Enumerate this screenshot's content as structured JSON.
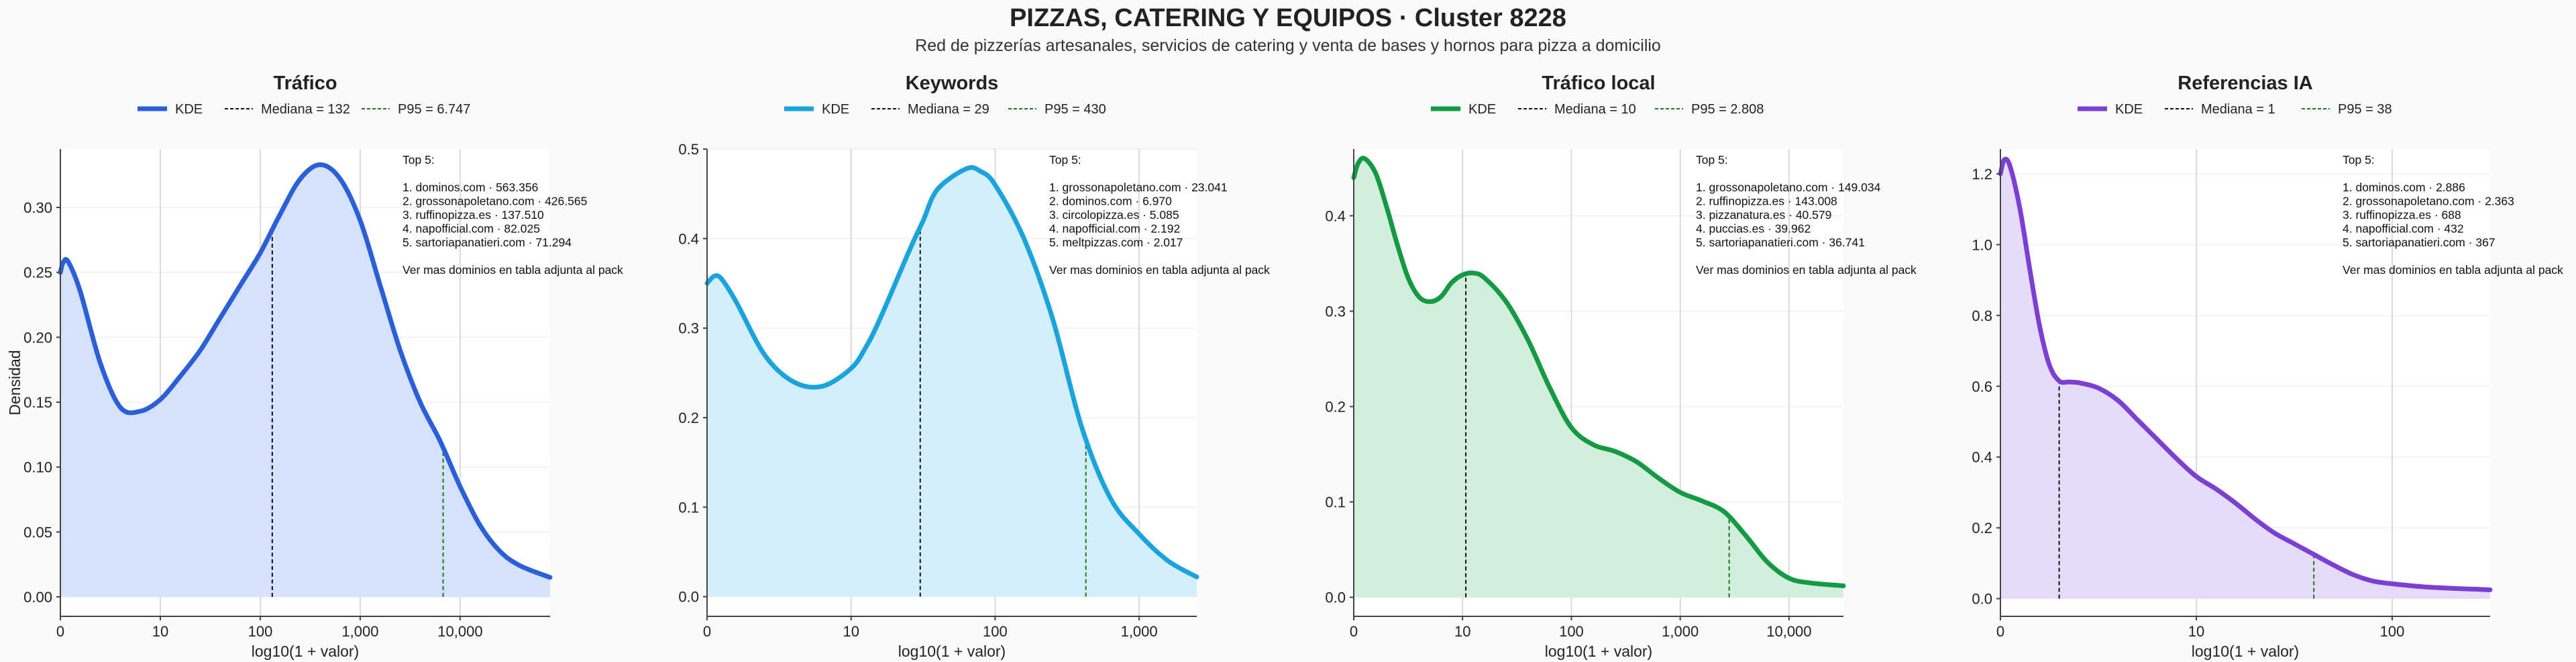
{
  "title": "PIZZAS, CATERING Y EQUIPOS · Cluster 8228",
  "subtitle": "Red de pizzerías artesanales, servicios de catering y venta de bases y hornos para pizza a domicilio",
  "chart_data": [
    {
      "type": "area",
      "title": "Tráfico",
      "xlabel": "log10(1 + valor)",
      "ylabel": "Densidad",
      "color": "#2b5fd9",
      "fill": "#d6e1fb",
      "xlim": [
        0,
        4.9
      ],
      "ylim": [
        -0.015,
        0.345
      ],
      "yticks": [
        0.0,
        0.05,
        0.1,
        0.15,
        0.2,
        0.25,
        0.3
      ],
      "ytick_labels": [
        "0.00",
        "0.05",
        "0.10",
        "0.15",
        "0.20",
        "0.25",
        "0.30"
      ],
      "xticks": [
        0,
        1,
        2,
        3,
        4
      ],
      "xtick_labels": [
        "0",
        "10",
        "100",
        "1,000",
        "10,000"
      ],
      "legend": [
        "KDE",
        "Mediana = 132",
        "P95 = 6.747"
      ],
      "median": 2.12,
      "p95": 3.83,
      "x": [
        0,
        0.03,
        0.08,
        0.2,
        0.4,
        0.6,
        0.8,
        1.0,
        1.2,
        1.4,
        1.6,
        1.8,
        2.0,
        2.2,
        2.4,
        2.6,
        2.8,
        3.0,
        3.2,
        3.4,
        3.6,
        3.8,
        4.0,
        4.2,
        4.4,
        4.6,
        4.9
      ],
      "y": [
        0.25,
        0.258,
        0.258,
        0.235,
        0.18,
        0.146,
        0.143,
        0.152,
        0.17,
        0.19,
        0.215,
        0.24,
        0.265,
        0.295,
        0.322,
        0.333,
        0.322,
        0.29,
        0.24,
        0.19,
        0.15,
        0.12,
        0.085,
        0.055,
        0.035,
        0.024,
        0.015
      ],
      "annotation": [
        "Top 5:",
        "",
        "1. dominos.com · 563.356",
        "2. grossonapoletano.com · 426.565",
        "3. ruffinopizza.es · 137.510",
        "4. napofficial.com · 82.025",
        "5. sartoriapanatieri.com · 71.294",
        "",
        "Ver mas dominios en tabla adjunta al pack"
      ]
    },
    {
      "type": "area",
      "title": "Keywords",
      "xlabel": "log10(1 + valor)",
      "ylabel": "",
      "color": "#1ba3dc",
      "fill": "#d4effb",
      "xlim": [
        0,
        3.4
      ],
      "ylim": [
        -0.022,
        0.5
      ],
      "yticks": [
        0.0,
        0.1,
        0.2,
        0.3,
        0.4,
        0.5
      ],
      "ytick_labels": [
        "0.0",
        "0.1",
        "0.2",
        "0.3",
        "0.4",
        "0.5"
      ],
      "xticks": [
        0,
        1,
        2,
        3
      ],
      "xtick_labels": [
        "0",
        "10",
        "100",
        "1,000"
      ],
      "legend": [
        "KDE",
        "Mediana = 29",
        "P95 = 430"
      ],
      "median": 1.48,
      "p95": 2.63,
      "x": [
        0,
        0.05,
        0.1,
        0.2,
        0.4,
        0.6,
        0.8,
        1.0,
        1.1,
        1.2,
        1.4,
        1.5,
        1.6,
        1.8,
        1.9,
        2.0,
        2.2,
        2.4,
        2.6,
        2.8,
        3.0,
        3.2,
        3.4
      ],
      "y": [
        0.35,
        0.358,
        0.355,
        0.33,
        0.27,
        0.24,
        0.235,
        0.255,
        0.278,
        0.31,
        0.385,
        0.42,
        0.455,
        0.478,
        0.475,
        0.46,
        0.4,
        0.31,
        0.19,
        0.11,
        0.07,
        0.04,
        0.022
      ],
      "annotation": [
        "Top 5:",
        "",
        "1. grossonapoletano.com · 23.041",
        "2. dominos.com · 6.970",
        "3. circolopizza.es · 5.085",
        "4. napofficial.com · 2.192",
        "5. meltpizzas.com · 2.017",
        "",
        "Ver mas dominios en tabla adjunta al pack"
      ]
    },
    {
      "type": "area",
      "title": "Tráfico local",
      "xlabel": "log10(1 + valor)",
      "ylabel": "",
      "color": "#149a43",
      "fill": "#d4eedd",
      "xlim": [
        0,
        4.5
      ],
      "ylim": [
        -0.02,
        0.47
      ],
      "yticks": [
        0.0,
        0.1,
        0.2,
        0.3,
        0.4
      ],
      "ytick_labels": [
        "0.0",
        "0.1",
        "0.2",
        "0.3",
        "0.4"
      ],
      "xticks": [
        0,
        1,
        2,
        3,
        4
      ],
      "xtick_labels": [
        "0",
        "10",
        "100",
        "1,000",
        "10,000"
      ],
      "legend": [
        "KDE",
        "Mediana = 10",
        "P95 = 2.808"
      ],
      "median": 1.03,
      "p95": 3.45,
      "x": [
        0,
        0.04,
        0.1,
        0.2,
        0.3,
        0.4,
        0.5,
        0.6,
        0.7,
        0.8,
        0.9,
        1.0,
        1.1,
        1.2,
        1.4,
        1.6,
        1.8,
        2.0,
        2.2,
        2.4,
        2.6,
        2.8,
        3.0,
        3.2,
        3.4,
        3.6,
        3.8,
        4.0,
        4.2,
        4.5
      ],
      "y": [
        0.44,
        0.455,
        0.46,
        0.445,
        0.41,
        0.37,
        0.335,
        0.315,
        0.31,
        0.315,
        0.33,
        0.338,
        0.34,
        0.335,
        0.31,
        0.27,
        0.22,
        0.178,
        0.16,
        0.153,
        0.142,
        0.125,
        0.11,
        0.101,
        0.09,
        0.065,
        0.037,
        0.02,
        0.015,
        0.012
      ],
      "annotation": [
        "Top 5:",
        "",
        "1. grossonapoletano.com · 149.034",
        "2. ruffinopizza.es · 143.008",
        "3. pizzanatura.es · 40.579",
        "4. puccias.es · 39.962",
        "5. sartoriapanatieri.com · 36.741",
        "",
        "Ver mas dominios en tabla adjunta al pack"
      ]
    },
    {
      "type": "area",
      "title": "Referencias IA",
      "xlabel": "log10(1 + valor)",
      "ylabel": "",
      "color": "#7b3fd4",
      "fill": "#e6dbf8",
      "xlim": [
        0,
        2.5
      ],
      "ylim": [
        -0.05,
        1.27
      ],
      "yticks": [
        0.0,
        0.2,
        0.4,
        0.6,
        0.8,
        1.0,
        1.2
      ],
      "ytick_labels": [
        "0.0",
        "0.2",
        "0.4",
        "0.6",
        "0.8",
        "1.0",
        "1.2"
      ],
      "xticks": [
        0,
        1,
        2
      ],
      "xtick_labels": [
        "0",
        "10",
        "100"
      ],
      "legend": [
        "KDE",
        "Mediana = 1",
        "P95 = 38"
      ],
      "median": 0.3,
      "p95": 1.6,
      "x": [
        0,
        0.02,
        0.05,
        0.1,
        0.15,
        0.2,
        0.25,
        0.3,
        0.35,
        0.4,
        0.5,
        0.6,
        0.7,
        0.8,
        0.9,
        1.0,
        1.1,
        1.2,
        1.3,
        1.4,
        1.5,
        1.6,
        1.7,
        1.8,
        1.9,
        2.0,
        2.2,
        2.5
      ],
      "y": [
        1.2,
        1.24,
        1.22,
        1.1,
        0.93,
        0.77,
        0.66,
        0.615,
        0.612,
        0.61,
        0.595,
        0.56,
        0.505,
        0.45,
        0.395,
        0.345,
        0.31,
        0.27,
        0.225,
        0.185,
        0.155,
        0.125,
        0.095,
        0.068,
        0.05,
        0.042,
        0.032,
        0.025
      ],
      "annotation": [
        "Top 5:",
        "",
        "1. dominos.com · 2.886",
        "2. grossonapoletano.com · 2.363",
        "3. ruffinopizza.es · 688",
        "4. napofficial.com · 432",
        "5. sartoriapanatieri.com · 367",
        "",
        "Ver mas dominios en tabla adjunta al pack"
      ]
    }
  ]
}
